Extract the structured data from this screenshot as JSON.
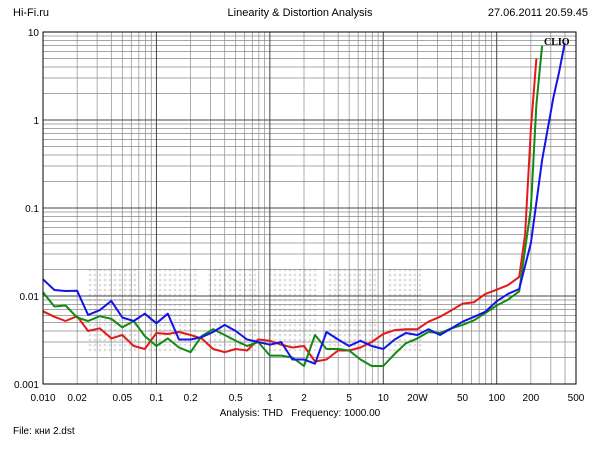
{
  "header": {
    "site": "Hi-Fi.ru",
    "title": "Linearity & Distortion Analysis",
    "datetime": "27.06.2011 20.59.45"
  },
  "footer": {
    "analysis_label": "Analysis:",
    "analysis_value": "THD",
    "frequency_label": "Frequency:",
    "frequency_value": "1000.00",
    "file_label": "File:",
    "file_value": "кни 2.dst"
  },
  "chart_data": {
    "type": "line",
    "title": "Linearity & Distortion Analysis",
    "xlabel": "",
    "ylabel": "",
    "x_scale": "log",
    "y_scale": "log",
    "xlim": [
      0.01,
      500
    ],
    "ylim": [
      0.001,
      10
    ],
    "grid": true,
    "brand_label": "CLIO",
    "x_tick_labels": [
      {
        "value": 0.01,
        "label": "0.010"
      },
      {
        "value": 0.02,
        "label": "0.02"
      },
      {
        "value": 0.05,
        "label": "0.05"
      },
      {
        "value": 0.1,
        "label": "0.1"
      },
      {
        "value": 0.2,
        "label": "0.2"
      },
      {
        "value": 0.5,
        "label": "0.5"
      },
      {
        "value": 1,
        "label": "1"
      },
      {
        "value": 2,
        "label": "2"
      },
      {
        "value": 5,
        "label": "5"
      },
      {
        "value": 10,
        "label": "10"
      },
      {
        "value": 20,
        "label": "20W"
      },
      {
        "value": 50,
        "label": "50"
      },
      {
        "value": 100,
        "label": "100"
      },
      {
        "value": 200,
        "label": "200"
      },
      {
        "value": 500,
        "label": "500"
      }
    ],
    "y_tick_labels": [
      {
        "value": 10,
        "label": "10"
      },
      {
        "value": 1,
        "label": "1"
      },
      {
        "value": 0.1,
        "label": "0.1"
      },
      {
        "value": 0.01,
        "label": "0.01"
      },
      {
        "value": 0.001,
        "label": "0.001"
      }
    ],
    "series": [
      {
        "color": "#e31a1a",
        "points": [
          [
            0.01,
            0.0067
          ],
          [
            0.0126,
            0.0058
          ],
          [
            0.0158,
            0.0052
          ],
          [
            0.02,
            0.0059
          ],
          [
            0.025,
            0.004
          ],
          [
            0.0316,
            0.0043
          ],
          [
            0.04,
            0.0033
          ],
          [
            0.05,
            0.0036
          ],
          [
            0.063,
            0.0027
          ],
          [
            0.079,
            0.0025
          ],
          [
            0.1,
            0.0038
          ],
          [
            0.126,
            0.0037
          ],
          [
            0.158,
            0.0039
          ],
          [
            0.2,
            0.0036
          ],
          [
            0.25,
            0.0033
          ],
          [
            0.316,
            0.0025
          ],
          [
            0.4,
            0.0023
          ],
          [
            0.5,
            0.0025
          ],
          [
            0.63,
            0.0024
          ],
          [
            0.79,
            0.0032
          ],
          [
            1.0,
            0.0031
          ],
          [
            1.26,
            0.0028
          ],
          [
            1.58,
            0.0026
          ],
          [
            2.0,
            0.0027
          ],
          [
            2.5,
            0.0018
          ],
          [
            3.16,
            0.0019
          ],
          [
            4.0,
            0.0024
          ],
          [
            5.0,
            0.0024
          ],
          [
            6.3,
            0.0026
          ],
          [
            7.9,
            0.003
          ],
          [
            10,
            0.0037
          ],
          [
            12.6,
            0.0041
          ],
          [
            15.8,
            0.0042
          ],
          [
            20,
            0.0042
          ],
          [
            25,
            0.0051
          ],
          [
            31.6,
            0.0058
          ],
          [
            40,
            0.0069
          ],
          [
            50,
            0.0082
          ],
          [
            63,
            0.0085
          ],
          [
            79,
            0.0105
          ],
          [
            100,
            0.0118
          ],
          [
            126,
            0.0133
          ],
          [
            158,
            0.0165
          ],
          [
            178,
            0.05
          ],
          [
            200,
            0.8
          ],
          [
            224,
            5.0
          ]
        ]
      },
      {
        "color": "#128a12",
        "points": [
          [
            0.01,
            0.011
          ],
          [
            0.0126,
            0.0076
          ],
          [
            0.0158,
            0.0078
          ],
          [
            0.02,
            0.0057
          ],
          [
            0.025,
            0.0052
          ],
          [
            0.0316,
            0.0059
          ],
          [
            0.04,
            0.0055
          ],
          [
            0.05,
            0.0044
          ],
          [
            0.063,
            0.0052
          ],
          [
            0.079,
            0.0035
          ],
          [
            0.1,
            0.0027
          ],
          [
            0.126,
            0.0033
          ],
          [
            0.158,
            0.0026
          ],
          [
            0.2,
            0.0023
          ],
          [
            0.25,
            0.0035
          ],
          [
            0.316,
            0.0042
          ],
          [
            0.4,
            0.0036
          ],
          [
            0.5,
            0.0031
          ],
          [
            0.63,
            0.0027
          ],
          [
            0.79,
            0.003
          ],
          [
            1.0,
            0.0021
          ],
          [
            1.26,
            0.0021
          ],
          [
            1.58,
            0.002
          ],
          [
            2.0,
            0.0016
          ],
          [
            2.5,
            0.0036
          ],
          [
            3.16,
            0.0025
          ],
          [
            4.0,
            0.0025
          ],
          [
            5.0,
            0.0024
          ],
          [
            6.3,
            0.0019
          ],
          [
            7.9,
            0.0016
          ],
          [
            10,
            0.0016
          ],
          [
            12.6,
            0.0022
          ],
          [
            15.8,
            0.0029
          ],
          [
            20,
            0.0033
          ],
          [
            25,
            0.0039
          ],
          [
            31.6,
            0.0038
          ],
          [
            40,
            0.0043
          ],
          [
            50,
            0.0047
          ],
          [
            63,
            0.0053
          ],
          [
            79,
            0.0064
          ],
          [
            100,
            0.0078
          ],
          [
            126,
            0.0091
          ],
          [
            158,
            0.0113
          ],
          [
            200,
            0.1
          ],
          [
            224,
            1.5
          ],
          [
            251,
            7.0
          ]
        ]
      },
      {
        "color": "#1414e6",
        "points": [
          [
            0.01,
            0.0155
          ],
          [
            0.0126,
            0.0117
          ],
          [
            0.0158,
            0.0114
          ],
          [
            0.02,
            0.0115
          ],
          [
            0.025,
            0.0061
          ],
          [
            0.0316,
            0.0069
          ],
          [
            0.04,
            0.0088
          ],
          [
            0.05,
            0.0057
          ],
          [
            0.063,
            0.0052
          ],
          [
            0.079,
            0.0063
          ],
          [
            0.1,
            0.0049
          ],
          [
            0.126,
            0.0063
          ],
          [
            0.158,
            0.0032
          ],
          [
            0.2,
            0.0032
          ],
          [
            0.25,
            0.0034
          ],
          [
            0.316,
            0.0039
          ],
          [
            0.4,
            0.0047
          ],
          [
            0.5,
            0.004
          ],
          [
            0.63,
            0.0032
          ],
          [
            0.79,
            0.003
          ],
          [
            1.0,
            0.0028
          ],
          [
            1.26,
            0.003
          ],
          [
            1.58,
            0.0019
          ],
          [
            2.0,
            0.0019
          ],
          [
            2.5,
            0.0017
          ],
          [
            3.16,
            0.0039
          ],
          [
            4.0,
            0.0032
          ],
          [
            5.0,
            0.0027
          ],
          [
            6.3,
            0.0031
          ],
          [
            7.9,
            0.0027
          ],
          [
            10,
            0.0025
          ],
          [
            12.6,
            0.0032
          ],
          [
            15.8,
            0.0038
          ],
          [
            20,
            0.0036
          ],
          [
            25,
            0.0042
          ],
          [
            31.6,
            0.0036
          ],
          [
            40,
            0.0043
          ],
          [
            50,
            0.0051
          ],
          [
            63,
            0.0058
          ],
          [
            79,
            0.0066
          ],
          [
            100,
            0.0087
          ],
          [
            126,
            0.0106
          ],
          [
            158,
            0.012
          ],
          [
            200,
            0.04
          ],
          [
            251,
            0.35
          ],
          [
            316,
            1.8
          ],
          [
            355,
            3.5
          ],
          [
            398,
            7.5
          ]
        ]
      }
    ]
  }
}
